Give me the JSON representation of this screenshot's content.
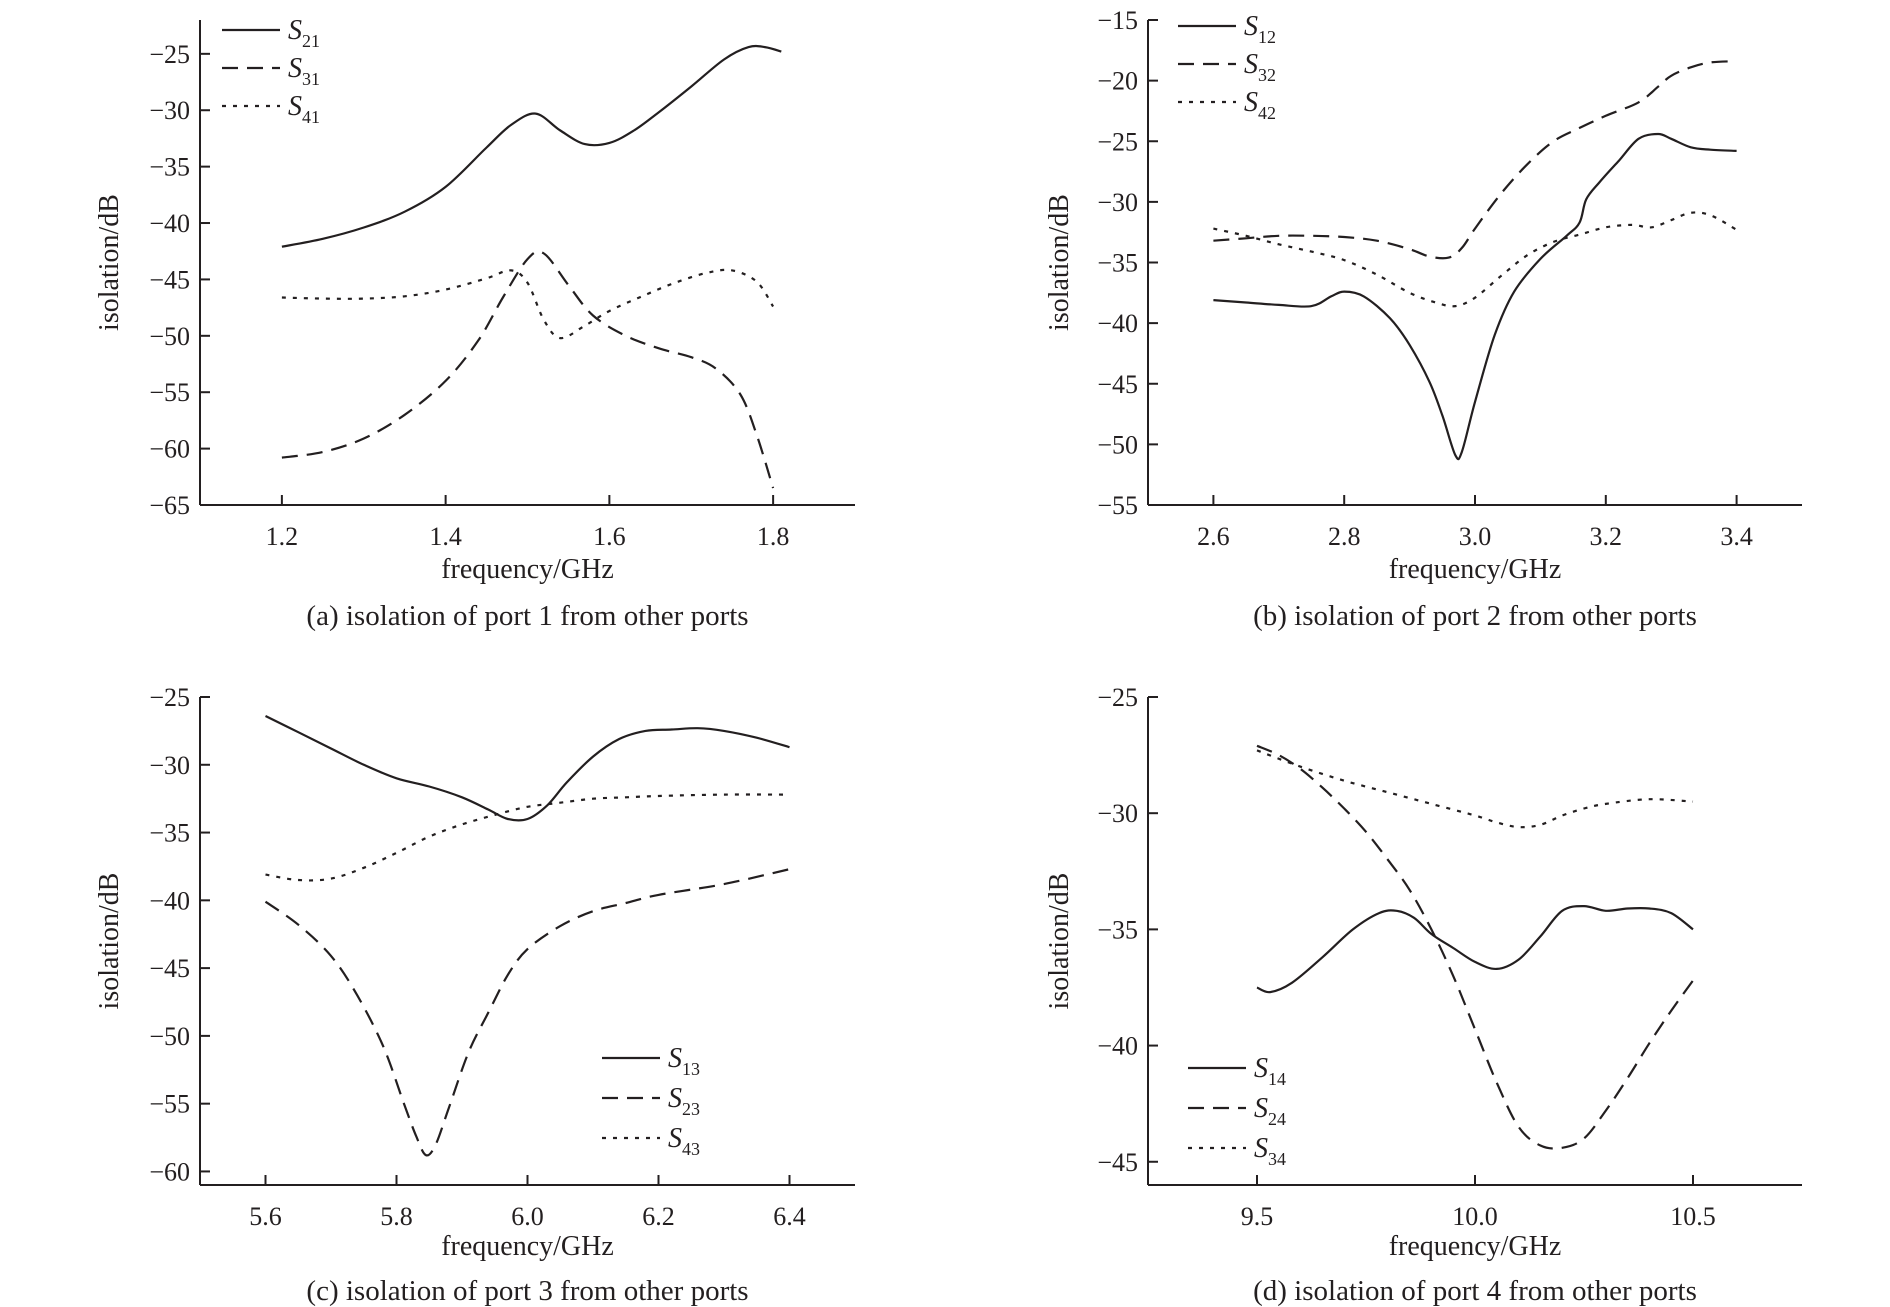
{
  "chart_data": [
    {
      "type": "line",
      "caption": "(a) isolation of port 1 from other ports",
      "xlabel": "frequency/GHz",
      "ylabel": "isolation/dB",
      "xlim": [
        1.1,
        1.9
      ],
      "ylim": [
        -65,
        -22
      ],
      "xticks": [
        1.2,
        1.4,
        1.6,
        1.8
      ],
      "xtick_labels": [
        "1.2",
        "1.4",
        "1.6",
        "1.8"
      ],
      "yticks": [
        -65,
        -60,
        -55,
        -50,
        -45,
        -40,
        -35,
        -30,
        -25
      ],
      "ytick_labels": [
        "−65",
        "−60",
        "−55",
        "−50",
        "−45",
        "−40",
        "−35",
        "−30",
        "−25"
      ],
      "legend_position": "top-left",
      "series": [
        {
          "name": "S",
          "sub": "21",
          "style": "solid",
          "x": [
            1.2,
            1.25,
            1.3,
            1.35,
            1.4,
            1.45,
            1.48,
            1.51,
            1.54,
            1.57,
            1.6,
            1.63,
            1.66,
            1.7,
            1.74,
            1.77,
            1.79,
            1.81
          ],
          "y": [
            -42.1,
            -41.4,
            -40.4,
            -39.0,
            -36.8,
            -33.3,
            -31.3,
            -30.3,
            -31.8,
            -33.0,
            -32.9,
            -31.8,
            -30.2,
            -27.9,
            -25.5,
            -24.4,
            -24.4,
            -24.8
          ]
        },
        {
          "name": "S",
          "sub": "31",
          "style": "dashed",
          "x": [
            1.2,
            1.25,
            1.3,
            1.35,
            1.4,
            1.44,
            1.47,
            1.5,
            1.52,
            1.55,
            1.58,
            1.62,
            1.66,
            1.7,
            1.73,
            1.76,
            1.78,
            1.8
          ],
          "y": [
            -60.8,
            -60.3,
            -59.1,
            -57.0,
            -54.0,
            -50.4,
            -46.6,
            -43.2,
            -42.7,
            -45.5,
            -48.2,
            -50.0,
            -51.1,
            -51.9,
            -52.9,
            -55.2,
            -58.8,
            -63.5
          ]
        },
        {
          "name": "S",
          "sub": "41",
          "style": "dotted",
          "x": [
            1.2,
            1.25,
            1.3,
            1.35,
            1.4,
            1.45,
            1.48,
            1.5,
            1.52,
            1.54,
            1.57,
            1.6,
            1.64,
            1.68,
            1.72,
            1.75,
            1.78,
            1.8
          ],
          "y": [
            -46.6,
            -46.7,
            -46.7,
            -46.5,
            -45.9,
            -44.9,
            -44.2,
            -45.3,
            -48.6,
            -50.2,
            -49.1,
            -47.8,
            -46.5,
            -45.3,
            -44.4,
            -44.2,
            -45.2,
            -47.4
          ]
        }
      ]
    },
    {
      "type": "line",
      "caption": "(b) isolation of port 2 from other ports",
      "xlabel": "frequency/GHz",
      "ylabel": "isolation/dB",
      "xlim": [
        2.5,
        3.5
      ],
      "ylim": [
        -55,
        -15
      ],
      "xticks": [
        2.6,
        2.8,
        3.0,
        3.2,
        3.4
      ],
      "xtick_labels": [
        "2.6",
        "2.8",
        "3.0",
        "3.2",
        "3.4"
      ],
      "yticks": [
        -55,
        -50,
        -45,
        -40,
        -35,
        -30,
        -25,
        -20,
        -15
      ],
      "ytick_labels": [
        "−55",
        "−50",
        "−45",
        "−40",
        "−35",
        "−30",
        "−25",
        "−20",
        "−15"
      ],
      "legend_position": "top-left",
      "series": [
        {
          "name": "S",
          "sub": "12",
          "style": "solid",
          "x": [
            2.6,
            2.65,
            2.7,
            2.75,
            2.78,
            2.8,
            2.83,
            2.87,
            2.9,
            2.93,
            2.95,
            2.97,
            2.98,
            3.0,
            3.03,
            3.06,
            3.1,
            3.14,
            3.16,
            3.17,
            3.19,
            3.22,
            3.25,
            3.28,
            3.3,
            3.33,
            3.36,
            3.4
          ],
          "y": [
            -38.1,
            -38.3,
            -38.5,
            -38.6,
            -37.8,
            -37.4,
            -37.8,
            -39.6,
            -41.8,
            -44.8,
            -47.6,
            -50.9,
            -50.6,
            -46.5,
            -41.0,
            -37.4,
            -34.7,
            -32.8,
            -31.7,
            -29.8,
            -28.4,
            -26.6,
            -24.8,
            -24.4,
            -24.8,
            -25.5,
            -25.7,
            -25.8
          ]
        },
        {
          "name": "S",
          "sub": "32",
          "style": "dashed",
          "x": [
            2.6,
            2.65,
            2.7,
            2.75,
            2.8,
            2.85,
            2.9,
            2.93,
            2.96,
            2.98,
            3.0,
            3.04,
            3.08,
            3.12,
            3.16,
            3.2,
            3.25,
            3.28,
            3.3,
            3.33,
            3.36,
            3.4
          ],
          "y": [
            -33.2,
            -33.0,
            -32.8,
            -32.8,
            -32.9,
            -33.2,
            -33.9,
            -34.5,
            -34.6,
            -33.8,
            -32.2,
            -29.3,
            -26.9,
            -25.0,
            -23.9,
            -22.9,
            -21.8,
            -20.5,
            -19.6,
            -18.9,
            -18.5,
            -18.4
          ]
        },
        {
          "name": "S",
          "sub": "42",
          "style": "dotted",
          "x": [
            2.6,
            2.65,
            2.7,
            2.75,
            2.8,
            2.85,
            2.9,
            2.94,
            2.97,
            3.0,
            3.04,
            3.08,
            3.12,
            3.16,
            3.2,
            3.24,
            3.27,
            3.3,
            3.33,
            3.36,
            3.4
          ],
          "y": [
            -32.2,
            -32.8,
            -33.5,
            -34.1,
            -34.8,
            -36.0,
            -37.5,
            -38.3,
            -38.6,
            -37.9,
            -36.1,
            -34.4,
            -33.3,
            -32.7,
            -32.1,
            -31.9,
            -32.1,
            -31.5,
            -30.9,
            -31.1,
            -32.3
          ]
        }
      ]
    },
    {
      "type": "line",
      "caption": "(c) isolation of port 3 from other ports",
      "xlabel": "frequency/GHz",
      "ylabel": "isolation/dB",
      "xlim": [
        5.5,
        6.5
      ],
      "ylim": [
        -61,
        -25
      ],
      "xticks": [
        5.6,
        5.8,
        6.0,
        6.2,
        6.4
      ],
      "xtick_labels": [
        "5.6",
        "5.8",
        "6.0",
        "6.2",
        "6.4"
      ],
      "yticks": [
        -60,
        -55,
        -50,
        -45,
        -40,
        -35,
        -30,
        -25
      ],
      "ytick_labels": [
        "−60",
        "−55",
        "−50",
        "−45",
        "−40",
        "−35",
        "−30",
        "−25"
      ],
      "legend_position": "bottom-right",
      "series": [
        {
          "name": "S",
          "sub": "13",
          "style": "solid",
          "x": [
            5.6,
            5.65,
            5.7,
            5.75,
            5.8,
            5.85,
            5.9,
            5.94,
            5.97,
            6.0,
            6.03,
            6.06,
            6.1,
            6.14,
            6.18,
            6.22,
            6.26,
            6.3,
            6.35,
            6.4
          ],
          "y": [
            -26.4,
            -27.6,
            -28.8,
            -30.0,
            -31.0,
            -31.6,
            -32.4,
            -33.3,
            -34.0,
            -34.0,
            -33.0,
            -31.3,
            -29.4,
            -28.1,
            -27.5,
            -27.4,
            -27.3,
            -27.5,
            -28.0,
            -28.7
          ]
        },
        {
          "name": "S",
          "sub": "23",
          "style": "dashed",
          "x": [
            5.6,
            5.65,
            5.7,
            5.74,
            5.78,
            5.81,
            5.83,
            5.845,
            5.86,
            5.88,
            5.91,
            5.94,
            5.97,
            6.0,
            6.05,
            6.1,
            6.15,
            6.2,
            6.3,
            6.4
          ],
          "y": [
            -40.1,
            -41.8,
            -44.1,
            -47.0,
            -50.8,
            -54.8,
            -57.4,
            -58.8,
            -58.0,
            -55.3,
            -51.2,
            -48.3,
            -45.5,
            -43.6,
            -41.9,
            -40.8,
            -40.2,
            -39.6,
            -38.8,
            -37.7
          ]
        },
        {
          "name": "S",
          "sub": "43",
          "style": "dotted",
          "x": [
            5.6,
            5.65,
            5.7,
            5.75,
            5.8,
            5.85,
            5.9,
            5.95,
            6.0,
            6.05,
            6.1,
            6.15,
            6.2,
            6.3,
            6.4
          ],
          "y": [
            -38.1,
            -38.5,
            -38.4,
            -37.6,
            -36.5,
            -35.3,
            -34.4,
            -33.7,
            -33.1,
            -32.8,
            -32.5,
            -32.4,
            -32.3,
            -32.2,
            -32.2
          ]
        }
      ]
    },
    {
      "type": "line",
      "caption": "(d) isolation of port 4 from other ports",
      "xlabel": "frequency/GHz",
      "ylabel": "isolation/dB",
      "xlim": [
        9.25,
        10.75
      ],
      "ylim": [
        -46,
        -25
      ],
      "xticks": [
        9.5,
        10.0,
        10.5
      ],
      "xtick_labels": [
        "9.5",
        "10.0",
        "10.5"
      ],
      "yticks": [
        -45,
        -40,
        -35,
        -30,
        -25
      ],
      "ytick_labels": [
        "−45",
        "−40",
        "−35",
        "−30",
        "−25"
      ],
      "legend_position": "bottom-left",
      "series": [
        {
          "name": "S",
          "sub": "14",
          "style": "solid",
          "x": [
            9.5,
            9.53,
            9.58,
            9.65,
            9.72,
            9.78,
            9.82,
            9.86,
            9.9,
            9.95,
            10.0,
            10.05,
            10.1,
            10.15,
            10.2,
            10.25,
            10.3,
            10.35,
            10.4,
            10.45,
            10.5
          ],
          "y": [
            -37.5,
            -37.7,
            -37.3,
            -36.2,
            -35.0,
            -34.3,
            -34.2,
            -34.5,
            -35.2,
            -35.8,
            -36.4,
            -36.7,
            -36.3,
            -35.3,
            -34.2,
            -34.0,
            -34.2,
            -34.1,
            -34.1,
            -34.3,
            -35.0
          ]
        },
        {
          "name": "S",
          "sub": "24",
          "style": "dashed",
          "x": [
            9.5,
            9.55,
            9.6,
            9.65,
            9.7,
            9.75,
            9.8,
            9.85,
            9.9,
            9.95,
            10.0,
            10.05,
            10.1,
            10.15,
            10.2,
            10.25,
            10.3,
            10.35,
            10.4,
            10.45,
            10.5
          ],
          "y": [
            -27.1,
            -27.5,
            -28.1,
            -28.9,
            -29.8,
            -30.8,
            -32.0,
            -33.3,
            -35.0,
            -37.0,
            -39.3,
            -41.6,
            -43.5,
            -44.3,
            -44.4,
            -44.0,
            -42.8,
            -41.4,
            -39.9,
            -38.5,
            -37.2
          ]
        },
        {
          "name": "S",
          "sub": "34",
          "style": "dotted",
          "x": [
            9.5,
            9.6,
            9.7,
            9.8,
            9.9,
            10.0,
            10.05,
            10.1,
            10.15,
            10.2,
            10.25,
            10.3,
            10.4,
            10.5
          ],
          "y": [
            -27.3,
            -28.0,
            -28.6,
            -29.1,
            -29.6,
            -30.1,
            -30.4,
            -30.6,
            -30.5,
            -30.1,
            -29.8,
            -29.6,
            -29.4,
            -29.5
          ]
        }
      ]
    }
  ]
}
